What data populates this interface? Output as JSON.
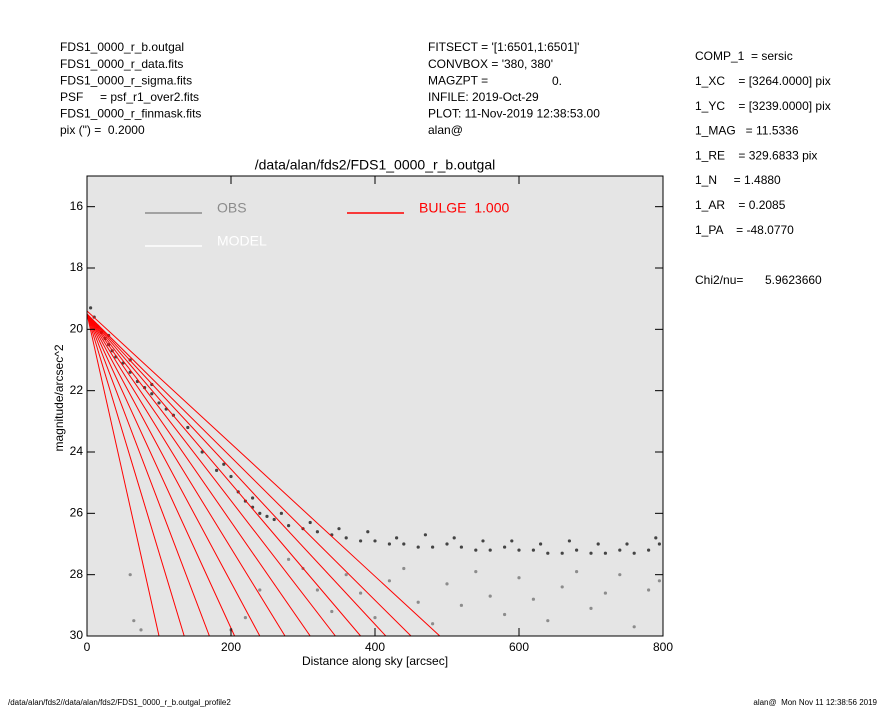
{
  "header": {
    "left": [
      "FDS1_0000_r_b.outgal",
      "FDS1_0000_r_data.fits",
      "FDS1_0000_r_sigma.fits",
      "PSF     = psf_r1_over2.fits",
      "FDS1_0000_r_finmask.fits",
      "pix (\") =  0.2000"
    ],
    "middle": [
      "FITSECT = '[1:6501,1:6501]'",
      "CONVBOX = '380, 380'",
      "MAGZPT =",
      "INFILE: 2019-Oct-29",
      "PLOT: 11-Nov-2019 12:38:53.00",
      "alan@"
    ],
    "magzpt_value": "0.",
    "right": [
      "COMP_1  = sersic",
      "1_XC    = [3264.0000] pix",
      "1_YC    = [3239.0000] pix",
      "1_MAG   = 11.5336",
      "1_RE    = 329.6833 pix",
      "1_N     = 1.4880",
      "1_AR    = 0.2085",
      "1_PA    = -48.0770"
    ],
    "chi2_label": "Chi2/nu=",
    "chi2_value": "5.9623660"
  },
  "footer": {
    "left": "/data/alan/fds2//data/alan/fds2/FDS1_0000_r_b.outgal_profile2",
    "right": "alan@  Mon Nov 11 12:38:56 2019"
  },
  "chart_data": {
    "type": "scatter",
    "title": "/data/alan/fds2/FDS1_0000_r_b.outgal",
    "xlabel": "Distance along sky [arcsec]",
    "ylabel": "magnitude/arcsec^2",
    "xlim": [
      0,
      800
    ],
    "ylim": [
      30,
      15
    ],
    "xticks": [
      0,
      200,
      400,
      600,
      800
    ],
    "yticks": [
      16,
      18,
      20,
      22,
      24,
      26,
      28,
      30
    ],
    "grid": false,
    "legend": "upper left",
    "background": "#e5e5e5",
    "series": [
      {
        "name": "OBS",
        "color": "#8c8c8c",
        "marker_color": "#444444",
        "x": [
          5,
          10,
          15,
          20,
          25,
          30,
          35,
          40,
          50,
          60,
          70,
          80,
          90,
          100,
          110,
          120,
          140,
          160,
          180,
          200,
          210,
          220,
          230,
          240,
          250,
          260,
          280,
          300,
          320,
          340,
          360,
          380,
          400,
          420,
          440,
          460,
          480,
          500,
          520,
          540,
          560,
          580,
          600,
          620,
          640,
          660,
          680,
          700,
          720,
          740,
          760,
          780,
          795,
          30,
          60,
          90,
          190,
          230,
          270,
          310,
          350,
          390,
          430,
          470,
          510,
          550,
          590,
          630,
          670,
          710,
          750,
          790
        ],
        "values": [
          19.3,
          19.6,
          19.9,
          20.1,
          20.3,
          20.5,
          20.7,
          20.9,
          21.1,
          21.4,
          21.7,
          21.9,
          22.1,
          22.4,
          22.6,
          22.8,
          23.2,
          24.0,
          24.6,
          24.8,
          25.3,
          25.6,
          25.8,
          26.0,
          26.1,
          26.2,
          26.4,
          26.5,
          26.6,
          26.7,
          26.8,
          26.9,
          26.9,
          27.0,
          27.0,
          27.1,
          27.1,
          27.0,
          27.1,
          27.2,
          27.2,
          27.1,
          27.2,
          27.2,
          27.3,
          27.3,
          27.2,
          27.3,
          27.3,
          27.2,
          27.3,
          27.2,
          27.0,
          20.2,
          21.0,
          21.8,
          24.4,
          25.5,
          26.0,
          26.3,
          26.5,
          26.6,
          26.8,
          26.7,
          26.8,
          26.9,
          26.9,
          27.0,
          26.9,
          27.0,
          27.0,
          26.8
        ]
      },
      {
        "name": "MODEL",
        "color": "#ffffff",
        "marker_color": "#8c8c8c",
        "x": [
          60,
          65,
          75,
          300,
          320,
          340,
          360,
          380,
          400,
          420,
          440,
          460,
          480,
          500,
          520,
          540,
          560,
          580,
          600,
          620,
          640,
          660,
          680,
          700,
          720,
          740,
          760,
          780,
          795,
          280,
          240,
          220,
          200
        ],
        "values": [
          28.0,
          29.5,
          29.8,
          27.8,
          28.5,
          29.2,
          28.0,
          28.6,
          29.4,
          28.2,
          27.8,
          28.9,
          29.6,
          28.3,
          29.0,
          27.9,
          28.7,
          29.3,
          28.1,
          28.8,
          29.5,
          28.4,
          27.9,
          29.1,
          28.6,
          28.0,
          29.7,
          28.5,
          28.2,
          27.5,
          28.5,
          29.4,
          29.8
        ]
      },
      {
        "name": "BULGE  1.000",
        "color": "#ff0000",
        "lines": [
          {
            "x": [
              0,
              100
            ],
            "values": [
              19.5,
              30
            ]
          },
          {
            "x": [
              0,
              135
            ],
            "values": [
              19.5,
              30
            ]
          },
          {
            "x": [
              0,
              170
            ],
            "values": [
              19.5,
              30
            ]
          },
          {
            "x": [
              0,
              205
            ],
            "values": [
              19.5,
              30
            ]
          },
          {
            "x": [
              0,
              240
            ],
            "values": [
              19.5,
              30
            ]
          },
          {
            "x": [
              0,
              275
            ],
            "values": [
              19.5,
              30
            ]
          },
          {
            "x": [
              0,
              310
            ],
            "values": [
              19.5,
              30
            ]
          },
          {
            "x": [
              0,
              345
            ],
            "values": [
              19.5,
              30
            ]
          },
          {
            "x": [
              0,
              380
            ],
            "values": [
              19.5,
              30
            ]
          },
          {
            "x": [
              0,
              415
            ],
            "values": [
              19.5,
              30
            ]
          },
          {
            "x": [
              0,
              450
            ],
            "values": [
              19.5,
              30
            ]
          },
          {
            "x": [
              0,
              490
            ],
            "values": [
              19.4,
              30
            ]
          }
        ]
      }
    ]
  }
}
